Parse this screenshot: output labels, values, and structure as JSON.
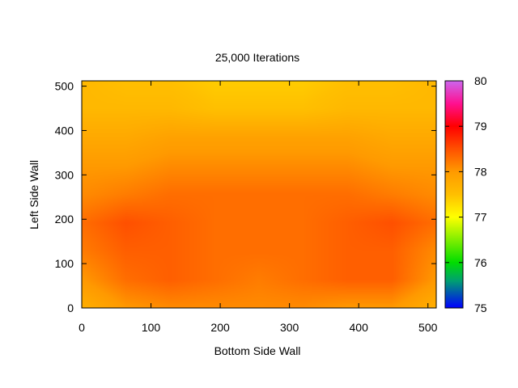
{
  "chart_data": {
    "type": "heatmap",
    "title": "25,000 Iterations",
    "xlabel": "Bottom Side Wall",
    "ylabel": "Left Side Wall",
    "xlim": [
      0,
      512
    ],
    "ylim": [
      0,
      512
    ],
    "x_ticks": [
      0,
      100,
      200,
      300,
      400,
      500
    ],
    "y_ticks": [
      0,
      100,
      200,
      300,
      400,
      500
    ],
    "colorbar": {
      "min": 75,
      "max": 80,
      "ticks": [
        75,
        76,
        77,
        78,
        79,
        80
      ],
      "palette": [
        {
          "value": 75.0,
          "color": "#0000ff"
        },
        {
          "value": 75.6,
          "color": "#00a070"
        },
        {
          "value": 76.0,
          "color": "#00dd00"
        },
        {
          "value": 76.5,
          "color": "#80ee00"
        },
        {
          "value": 77.0,
          "color": "#ffff00"
        },
        {
          "value": 77.5,
          "color": "#ffbf00"
        },
        {
          "value": 78.0,
          "color": "#ff9a00"
        },
        {
          "value": 78.5,
          "color": "#ff5000"
        },
        {
          "value": 79.0,
          "color": "#ff0000"
        },
        {
          "value": 79.5,
          "color": "#ff1090"
        },
        {
          "value": 80.0,
          "color": "#cc66ee"
        }
      ]
    },
    "x": [
      0,
      64,
      128,
      192,
      256,
      320,
      384,
      448,
      512
    ],
    "y": [
      0,
      64,
      128,
      192,
      256,
      320,
      384,
      448,
      512
    ],
    "z": [
      [
        77.7,
        78.0,
        78.1,
        78.1,
        78.1,
        78.1,
        78.0,
        78.0,
        77.7
      ],
      [
        78.0,
        78.3,
        78.4,
        78.3,
        78.2,
        78.3,
        78.4,
        78.4,
        78.0
      ],
      [
        78.2,
        78.4,
        78.4,
        78.3,
        78.3,
        78.3,
        78.4,
        78.4,
        78.1
      ],
      [
        78.3,
        78.5,
        78.4,
        78.3,
        78.3,
        78.3,
        78.4,
        78.5,
        78.3
      ],
      [
        78.1,
        78.2,
        78.3,
        78.3,
        78.3,
        78.3,
        78.3,
        78.2,
        78.1
      ],
      [
        78.0,
        78.0,
        78.1,
        78.1,
        78.1,
        78.1,
        78.1,
        78.0,
        78.0
      ],
      [
        77.8,
        77.8,
        77.9,
        77.9,
        77.9,
        77.9,
        77.9,
        77.8,
        77.8
      ],
      [
        77.6,
        77.6,
        77.6,
        77.5,
        77.5,
        77.5,
        77.6,
        77.6,
        77.6
      ],
      [
        77.6,
        77.5,
        77.5,
        77.4,
        77.4,
        77.4,
        77.5,
        77.5,
        77.6
      ]
    ]
  }
}
